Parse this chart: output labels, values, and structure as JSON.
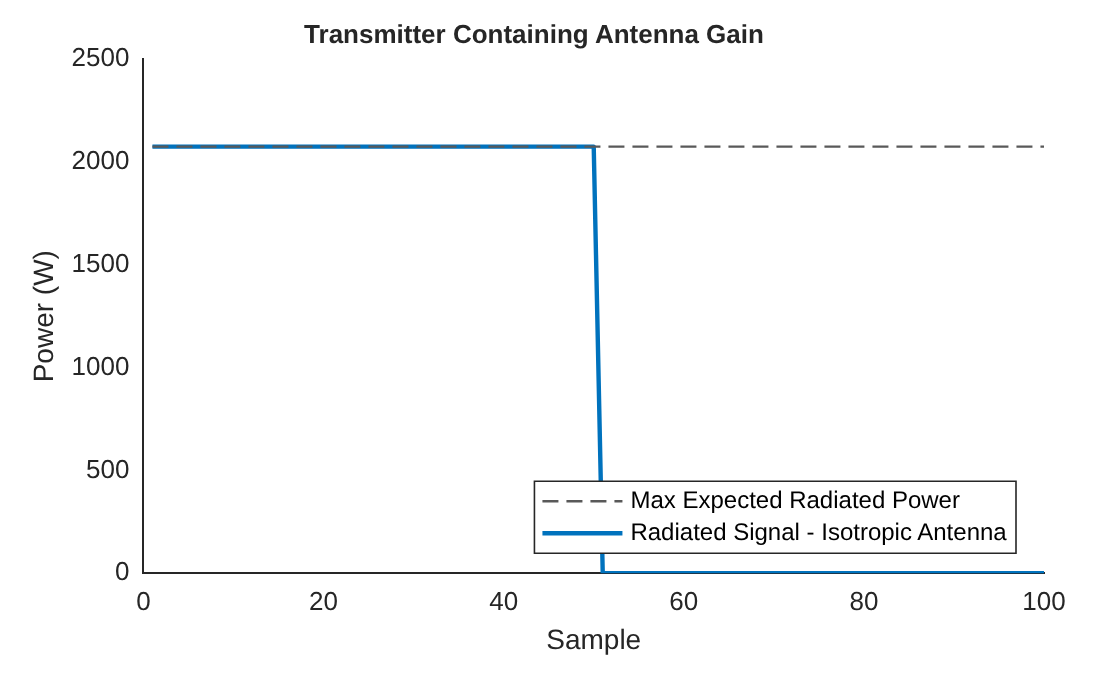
{
  "chart_data": {
    "type": "line",
    "title": "Transmitter Containing Antenna Gain",
    "xlabel": "Sample",
    "ylabel": "Power (W)",
    "xlim": [
      0,
      100
    ],
    "xticks": [
      0,
      20,
      40,
      60,
      80,
      100
    ],
    "ylim": [
      0,
      2500
    ],
    "yticks": [
      0,
      500,
      1000,
      1500,
      2000,
      2500
    ],
    "grid": false,
    "legend": "bottom right",
    "marker": "none",
    "series": [
      {
        "name": "Max Expected Radiated Power",
        "color": "#595959",
        "line_style": "dashed",
        "x": [
          1,
          100
        ],
        "values": [
          2075,
          2075
        ]
      },
      {
        "name": "Radiated Signal - Isotropic Antenna",
        "color": "#0072bd",
        "line_style": "solid",
        "x": [
          1,
          50,
          51,
          100
        ],
        "values": [
          2075,
          2075,
          0,
          0
        ]
      }
    ]
  }
}
